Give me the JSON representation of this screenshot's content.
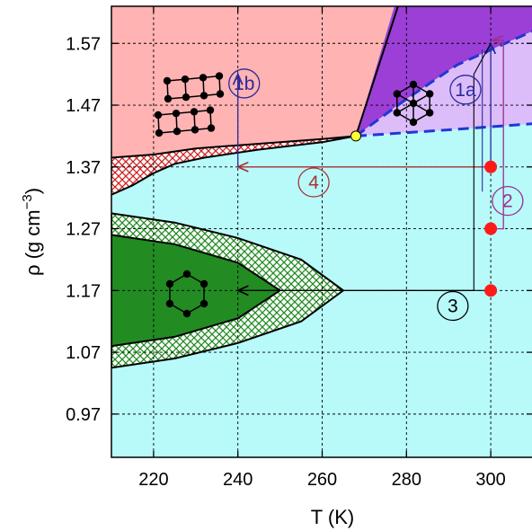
{
  "chart_data": {
    "type": "phase-diagram",
    "xlabel": "T (K)",
    "ylabel": "ρ (g cm⁻³)",
    "xlim": [
      210,
      310
    ],
    "ylim": [
      0.9,
      1.63
    ],
    "x_ticks": [
      220,
      240,
      260,
      280,
      300
    ],
    "y_ticks": [
      0.97,
      1.07,
      1.17,
      1.27,
      1.37,
      1.47,
      1.57
    ],
    "grid": true,
    "colors": {
      "square_ice_region": "#ffb3b3",
      "triangular_ice_region": "#9b3fd6",
      "metastable_triangular_region": "#dcbdfa",
      "liquid_region": "#b8fafa",
      "hexagonal_ice_region": "#228b22",
      "coexistence_hatch_green": "#228b22",
      "coexistence_hatch_red": "#d02020",
      "phase_boundary": "#000000",
      "spinodal_dashed": "#1f37d6",
      "triple_point": "#ffff33",
      "state_points": "#ff1a1a",
      "path_1a": "#2a2a9a",
      "path_1b": "#2a2a9a",
      "path_2": "#9b2f8f",
      "path_3": "#000000",
      "path_4": "#a83232"
    },
    "boundaries": {
      "square_liquid": [
        [
          210,
          1.385
        ],
        [
          220,
          1.39
        ],
        [
          230,
          1.4
        ],
        [
          240,
          1.405
        ],
        [
          250,
          1.41
        ],
        [
          260,
          1.415
        ],
        [
          268,
          1.42
        ]
      ],
      "square_liquid_lower": [
        [
          210,
          1.325
        ],
        [
          215,
          1.34
        ],
        [
          220,
          1.36
        ],
        [
          225,
          1.375
        ],
        [
          232,
          1.385
        ],
        [
          245,
          1.398
        ],
        [
          260,
          1.41
        ],
        [
          268,
          1.42
        ]
      ],
      "square_triangular": [
        [
          268,
          1.42
        ],
        [
          278,
          1.63
        ]
      ],
      "triangular_spinodal": [
        [
          268,
          1.42
        ],
        [
          280,
          1.48
        ],
        [
          292,
          1.535
        ],
        [
          310,
          1.59
        ]
      ],
      "metastable_lower": [
        [
          268,
          1.42
        ],
        [
          290,
          1.43
        ],
        [
          310,
          1.44
        ]
      ],
      "hexagonal_outer": [
        [
          210,
          1.295
        ],
        [
          225,
          1.28
        ],
        [
          240,
          1.255
        ],
        [
          255,
          1.22
        ],
        [
          265,
          1.17
        ],
        [
          255,
          1.12
        ],
        [
          240,
          1.085
        ],
        [
          225,
          1.06
        ],
        [
          210,
          1.045
        ]
      ],
      "hexagonal_inner": [
        [
          210,
          1.26
        ],
        [
          225,
          1.245
        ],
        [
          240,
          1.215
        ],
        [
          250,
          1.17
        ],
        [
          240,
          1.125
        ],
        [
          225,
          1.095
        ],
        [
          210,
          1.08
        ]
      ]
    },
    "triple_point": [
      268,
      1.42
    ],
    "state_points": [
      [
        300,
        1.37
      ],
      [
        300,
        1.27
      ],
      [
        300,
        1.17
      ]
    ],
    "annotations": [
      {
        "label": "1a",
        "x": 294,
        "y": 1.495,
        "color": "#2a2a9a"
      },
      {
        "label": "1b",
        "x": 241.5,
        "y": 1.505,
        "color": "#2a2a9a"
      },
      {
        "label": "2",
        "x": 304,
        "y": 1.315,
        "color": "#9b2f8f"
      },
      {
        "label": "3",
        "x": 291,
        "y": 1.145,
        "color": "#000000"
      },
      {
        "label": "4",
        "x": 258,
        "y": 1.345,
        "color": "#a83232"
      }
    ],
    "paths": {
      "1a": [
        [
          300,
          1.37
        ],
        [
          300,
          1.57
        ]
      ],
      "1b": [
        [
          300,
          1.37
        ],
        [
          298,
          1.37
        ],
        [
          298,
          1.57
        ]
      ],
      "2": [
        [
          300,
          1.27
        ],
        [
          303,
          1.27
        ],
        [
          303,
          1.57
        ]
      ],
      "3": [
        [
          300,
          1.17
        ],
        [
          297,
          1.17
        ],
        [
          297,
          1.45
        ],
        [
          240,
          1.17
        ]
      ],
      "4": [
        [
          300,
          1.37
        ],
        [
          240,
          1.37
        ]
      ]
    }
  }
}
